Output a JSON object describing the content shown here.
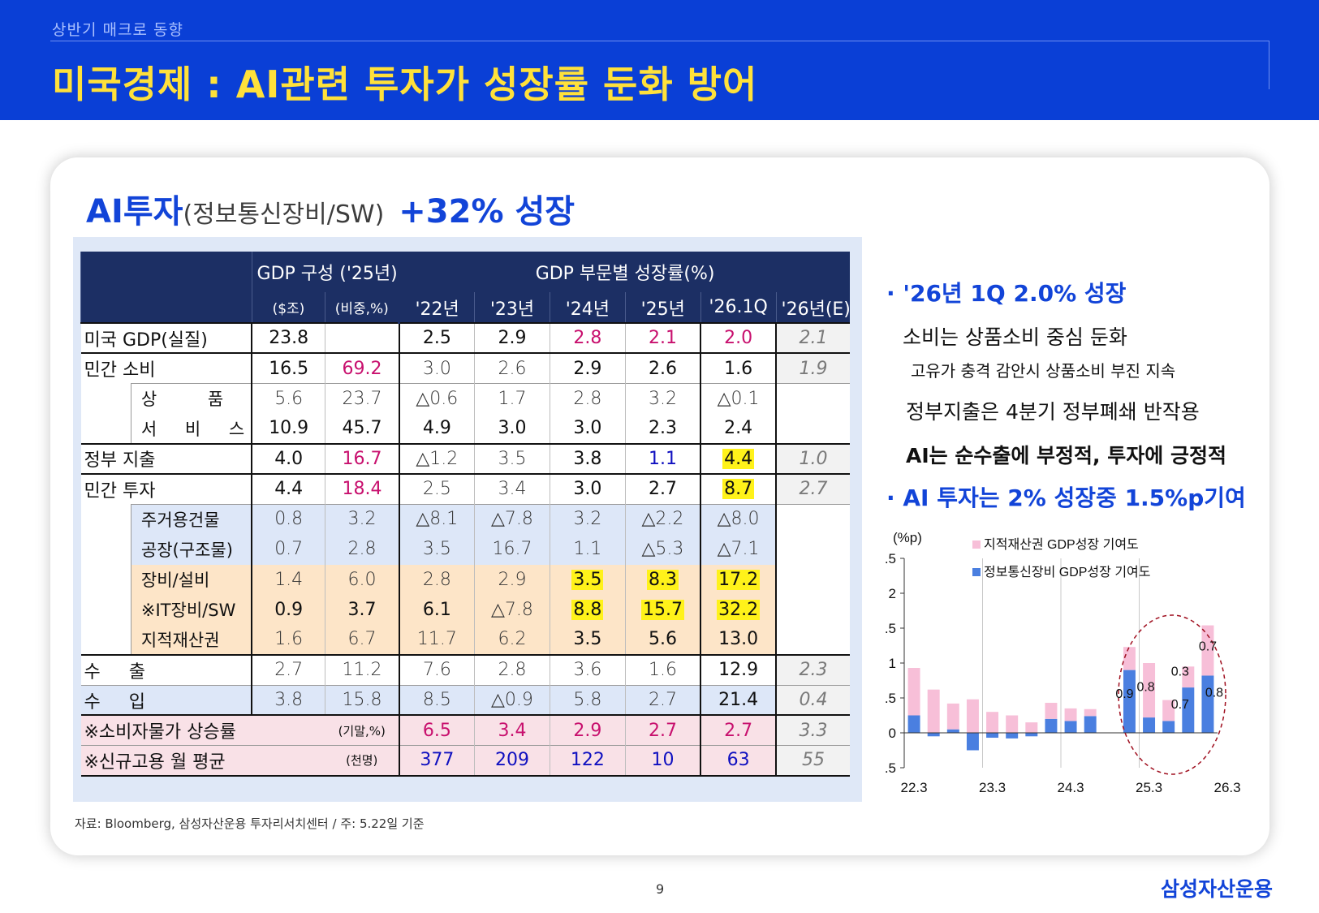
{
  "header": {
    "section": "상반기 매크로 동향",
    "title": "미국경제 : AI관련 투자가 성장률 둔화 방어"
  },
  "subtitle": {
    "main": "AI투자",
    "paren": "(정보통신장비/SW)",
    "growth": "+32% 성장"
  },
  "table": {
    "group1": "GDP 구성",
    "group1_year": "('25년)",
    "group2": "GDP 부문별 성장률(%)",
    "units": [
      "($조)",
      "(비중,%)"
    ],
    "years": [
      "'22년",
      "'23년",
      "'24년",
      "'25년",
      "'26.1Q",
      "'26년(E)"
    ],
    "rows": {
      "gdp": {
        "label": "미국 GDP(실질)",
        "v": [
          "23.8",
          "",
          "2.5",
          "2.9",
          "2.8",
          "2.1",
          "2.0",
          "2.1"
        ]
      },
      "pc": {
        "label": "민간 소비",
        "v": [
          "16.5",
          "69.2",
          "3.0",
          "2.6",
          "2.9",
          "2.6",
          "1.6",
          "1.9"
        ]
      },
      "goods": {
        "label": "상  품",
        "v": [
          "5.6",
          "23.7",
          "△0.6",
          "1.7",
          "2.8",
          "3.2",
          "△0.1",
          ""
        ]
      },
      "services": {
        "label": "서 비 스",
        "v": [
          "10.9",
          "45.7",
          "4.9",
          "3.0",
          "3.0",
          "2.3",
          "2.4",
          ""
        ]
      },
      "gov": {
        "label": "정부 지출",
        "v": [
          "4.0",
          "16.7",
          "△1.2",
          "3.5",
          "3.8",
          "1.1",
          "4.4",
          "1.0"
        ]
      },
      "inv": {
        "label": "민간 투자",
        "v": [
          "4.4",
          "18.4",
          "2.5",
          "3.4",
          "3.0",
          "2.7",
          "8.7",
          "2.7"
        ]
      },
      "resid": {
        "label": "주거용건물",
        "v": [
          "0.8",
          "3.2",
          "△8.1",
          "△7.8",
          "3.2",
          "△2.2",
          "△8.0",
          ""
        ]
      },
      "factory": {
        "label": "공장(구조물)",
        "v": [
          "0.7",
          "2.8",
          "3.5",
          "16.7",
          "1.1",
          "△5.3",
          "△7.1",
          ""
        ]
      },
      "equip": {
        "label": "장비/설비",
        "v": [
          "1.4",
          "6.0",
          "2.8",
          "2.9",
          "3.5",
          "8.3",
          "17.2",
          ""
        ]
      },
      "it": {
        "label": "※IT장비/SW",
        "v": [
          "0.9",
          "3.7",
          "6.1",
          "△7.8",
          "8.8",
          "15.7",
          "32.2",
          ""
        ]
      },
      "ip": {
        "label": "지적재산권",
        "v": [
          "1.6",
          "6.7",
          "11.7",
          "6.2",
          "3.5",
          "5.6",
          "13.0",
          ""
        ]
      },
      "exp": {
        "label": "수  출",
        "v": [
          "2.7",
          "11.2",
          "7.6",
          "2.8",
          "3.6",
          "1.6",
          "12.9",
          "2.3"
        ]
      },
      "imp": {
        "label": "수  입",
        "v": [
          "3.8",
          "15.8",
          "8.5",
          "△0.9",
          "5.8",
          "2.7",
          "21.4",
          "0.4"
        ]
      },
      "cpi": {
        "label": "※소비자물가 상승률",
        "unit": "(기말,%)",
        "v": [
          "6.5",
          "3.4",
          "2.9",
          "2.7",
          "2.7",
          "3.3"
        ]
      },
      "jobs": {
        "label": "※신규고용 월 평균",
        "unit": "(천명)",
        "v": [
          "377",
          "209",
          "122",
          "10",
          "63",
          "55"
        ]
      }
    }
  },
  "source": "자료: Bloomberg, 삼성자산운용 투자리서치센터 / 주: 5.22일 기준",
  "bullets": {
    "h1": "· '26년 1Q 2.0% 성장",
    "l1": "소비는 상품소비 중심 둔화",
    "l2": "고유가 충격 감안시 상품소비 부진 지속",
    "l3": "정부지출은 4분기 정부폐쇄 반작용",
    "l4": "AI는 순수출에 부정적, 투자에 긍정적",
    "h2": "· AI 투자는 2% 성장중 1.5%p기여"
  },
  "chart_data": {
    "type": "bar",
    "stacked": true,
    "ylabel": "(%p)",
    "ylim": [
      -0.5,
      2.5
    ],
    "yticks": [
      "2.5",
      "2",
      "1.5",
      "1",
      "0.5",
      "0",
      "−0.5"
    ],
    "xticks": [
      "22.3",
      "23.3",
      "24.3",
      "25.3",
      "26.3"
    ],
    "legend": [
      "지적재산권 GDP성장 기여도",
      "정보통신장비 GDP성장 기여도"
    ],
    "series": [
      {
        "name": "정보통신장비 GDP성장 기여도",
        "color": "#4a7fe0",
        "values": [
          0.25,
          -0.05,
          0.05,
          -0.25,
          -0.07,
          -0.08,
          -0.05,
          0.2,
          0.17,
          0.24,
          0.0,
          0.9,
          0.22,
          0.17,
          0.65,
          0.82
        ]
      },
      {
        "name": "지적재산권 GDP성장 기여도",
        "color": "#f7bfd8",
        "values": [
          0.68,
          0.62,
          0.37,
          0.48,
          0.3,
          0.25,
          0.15,
          0.23,
          0.18,
          0.1,
          0.0,
          0.33,
          0.78,
          0.3,
          0.3,
          0.72
        ]
      }
    ],
    "annotations": [
      "0.9",
      "0.8",
      "0.3",
      "0.7",
      "0.7",
      "0.8"
    ]
  }
}
